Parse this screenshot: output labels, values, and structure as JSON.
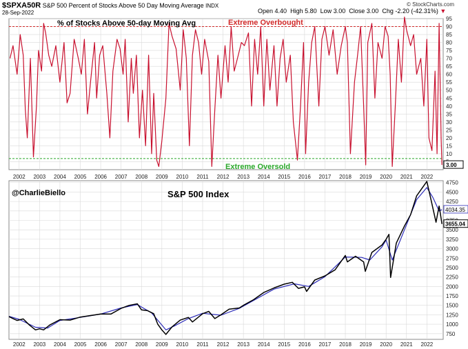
{
  "header": {
    "symbol": "$SPXA50R",
    "description": "S&P 500 Percent of Stocks Above 50 Day Moving Average",
    "exchange": "INDX",
    "date": "28-Sep-2022",
    "open_label": "Open",
    "open_value": "4.40",
    "high_label": "High",
    "high_value": "5.80",
    "low_label": "Low",
    "low_value": "3.00",
    "close_label": "Close",
    "close_value": "3.00",
    "chg_label": "Chg",
    "chg_value": "-2.20 (-42.31%)",
    "watermark": "© StockCharts.com"
  },
  "colors": {
    "breadth_line": "#c8102e",
    "overbought": "#d12a2a",
    "oversold": "#2aa82a",
    "price_line": "#000000",
    "ma_line": "#2b2bb8",
    "grid": "#d9d9d9"
  },
  "chart_data": [
    {
      "type": "line",
      "title": "% of Stocks Above 50-day Moving Avg",
      "xlabel": "",
      "ylabel": "",
      "xlim": [
        2001.5,
        2022.8
      ],
      "ylim": [
        0,
        95
      ],
      "y_ticks": [
        5,
        10,
        15,
        20,
        25,
        30,
        35,
        40,
        45,
        50,
        55,
        60,
        65,
        70,
        75,
        80,
        85,
        90,
        95
      ],
      "grid": true,
      "reference_lines": [
        {
          "label": "Extreme Overbought",
          "value": 90
        },
        {
          "label": "Extreme Oversold",
          "value": 7
        }
      ],
      "last_value_label": "3.00",
      "series": [
        {
          "name": "",
          "x": [
            2001.55,
            2001.7,
            2001.9,
            2002.05,
            2002.2,
            2002.3,
            2002.4,
            2002.55,
            2002.7,
            2002.85,
            2002.95,
            2003.1,
            2003.2,
            2003.3,
            2003.45,
            2003.6,
            2003.8,
            2004.0,
            2004.2,
            2004.35,
            2004.5,
            2004.7,
            2004.9,
            2005.05,
            2005.2,
            2005.35,
            2005.5,
            2005.7,
            2005.8,
            2005.95,
            2006.1,
            2006.3,
            2006.45,
            2006.6,
            2006.8,
            2006.95,
            2007.1,
            2007.2,
            2007.35,
            2007.5,
            2007.6,
            2007.75,
            2007.9,
            2008.05,
            2008.2,
            2008.35,
            2008.5,
            2008.6,
            2008.75,
            2008.85,
            2009.0,
            2009.2,
            2009.35,
            2009.5,
            2009.7,
            2009.9,
            2010.05,
            2010.2,
            2010.35,
            2010.5,
            2010.65,
            2010.8,
            2010.95,
            2011.1,
            2011.3,
            2011.45,
            2011.6,
            2011.75,
            2011.9,
            2012.1,
            2012.25,
            2012.4,
            2012.55,
            2012.75,
            2012.9,
            2013.05,
            2013.25,
            2013.4,
            2013.55,
            2013.7,
            2013.85,
            2014.0,
            2014.15,
            2014.3,
            2014.5,
            2014.65,
            2014.8,
            2014.95,
            2015.1,
            2015.3,
            2015.45,
            2015.65,
            2015.8,
            2015.95,
            2016.05,
            2016.2,
            2016.35,
            2016.5,
            2016.7,
            2016.85,
            2017.0,
            2017.2,
            2017.4,
            2017.6,
            2017.8,
            2018.0,
            2018.1,
            2018.25,
            2018.45,
            2018.6,
            2018.75,
            2018.9,
            2019.0,
            2019.1,
            2019.3,
            2019.45,
            2019.6,
            2019.8,
            2019.95,
            2020.1,
            2020.2,
            2020.3,
            2020.45,
            2020.6,
            2020.75,
            2020.9,
            2021.0,
            2021.2,
            2021.35,
            2021.5,
            2021.7,
            2021.85,
            2022.0,
            2022.1,
            2022.25,
            2022.4,
            2022.5,
            2022.6,
            2022.7,
            2022.74
          ],
          "y": [
            70,
            78,
            60,
            85,
            72,
            38,
            20,
            70,
            8,
            40,
            75,
            62,
            92,
            86,
            72,
            65,
            78,
            55,
            80,
            42,
            48,
            82,
            70,
            60,
            82,
            35,
            55,
            80,
            45,
            72,
            78,
            48,
            20,
            62,
            82,
            76,
            60,
            82,
            30,
            70,
            48,
            72,
            20,
            50,
            15,
            72,
            10,
            48,
            6,
            2,
            18,
            45,
            92,
            84,
            76,
            50,
            88,
            70,
            15,
            72,
            88,
            80,
            60,
            82,
            68,
            2,
            38,
            72,
            45,
            78,
            55,
            90,
            62,
            72,
            80,
            78,
            86,
            40,
            82,
            60,
            90,
            40,
            82,
            50,
            78,
            40,
            70,
            82,
            55,
            72,
            30,
            6,
            40,
            80,
            10,
            55,
            80,
            90,
            40,
            82,
            90,
            72,
            88,
            60,
            78,
            90,
            80,
            10,
            55,
            72,
            90,
            40,
            3,
            80,
            92,
            45,
            80,
            70,
            90,
            84,
            60,
            2,
            40,
            82,
            55,
            96,
            88,
            78,
            85,
            60,
            70,
            40,
            82,
            20,
            12,
            62,
            10,
            92,
            20,
            3
          ]
        }
      ]
    },
    {
      "type": "line",
      "title": "S&P 500 Index",
      "xlabel": "",
      "ylabel": "",
      "annotation": "@CharlieBiello",
      "xlim": [
        2001.5,
        2022.8
      ],
      "ylim": [
        600,
        4800
      ],
      "y_ticks": [
        750,
        1000,
        1250,
        1500,
        1750,
        2000,
        2250,
        2500,
        2750,
        3000,
        3250,
        3500,
        3750,
        4000,
        4250,
        4500,
        4750
      ],
      "x_ticks": [
        "2002",
        "2003",
        "2004",
        "2005",
        "2006",
        "2007",
        "2008",
        "2009",
        "2010",
        "2011",
        "2012",
        "2013",
        "2014",
        "2015",
        "2016",
        "2017",
        "2018",
        "2019",
        "2020",
        "2021",
        "2022"
      ],
      "x_tick_values": [
        2002,
        2003,
        2004,
        2005,
        2006,
        2007,
        2008,
        2009,
        2010,
        2011,
        2012,
        2013,
        2014,
        2015,
        2016,
        2017,
        2018,
        2019,
        2020,
        2021,
        2022
      ],
      "grid": true,
      "price_labels": [
        "4034.35",
        "3655.04"
      ],
      "series": [
        {
          "name": "",
          "x": [
            2001.5,
            2001.7,
            2001.9,
            2002.2,
            2002.5,
            2002.8,
            2003.0,
            2003.2,
            2003.5,
            2004.0,
            2004.5,
            2005.0,
            2005.5,
            2006.0,
            2006.5,
            2007.0,
            2007.4,
            2007.8,
            2008.0,
            2008.3,
            2008.6,
            2008.8,
            2009.0,
            2009.2,
            2009.5,
            2009.9,
            2010.3,
            2010.5,
            2011.0,
            2011.3,
            2011.6,
            2011.9,
            2012.3,
            2012.8,
            2013.0,
            2013.5,
            2014.0,
            2014.5,
            2015.0,
            2015.4,
            2015.7,
            2016.0,
            2016.1,
            2016.5,
            2017.0,
            2017.5,
            2018.0,
            2018.1,
            2018.5,
            2018.9,
            2018.98,
            2019.3,
            2019.8,
            2020.0,
            2020.14,
            2020.22,
            2020.5,
            2020.9,
            2021.2,
            2021.5,
            2022.0,
            2022.2,
            2022.45,
            2022.6,
            2022.7,
            2022.74
          ],
          "y": [
            1200,
            1150,
            1100,
            1140,
            980,
            850,
            880,
            850,
            980,
            1120,
            1110,
            1190,
            1230,
            1270,
            1270,
            1420,
            1500,
            1540,
            1380,
            1360,
            1280,
            1000,
            850,
            730,
            930,
            1110,
            1180,
            1060,
            1280,
            1340,
            1150,
            1250,
            1400,
            1430,
            1500,
            1650,
            1840,
            1960,
            2060,
            2110,
            1950,
            1990,
            1870,
            2170,
            2280,
            2440,
            2820,
            2650,
            2800,
            2650,
            2400,
            2900,
            3100,
            3250,
            3380,
            2240,
            3150,
            3600,
            3900,
            4400,
            4780,
            4300,
            3700,
            4130,
            3800,
            3655
          ]
        },
        {
          "name": "",
          "x": [
            2001.5,
            2002.0,
            2002.8,
            2003.4,
            2004.0,
            2005.0,
            2006.0,
            2007.0,
            2007.8,
            2008.5,
            2009.2,
            2009.6,
            2010.3,
            2011.0,
            2011.9,
            2012.8,
            2013.5,
            2014.5,
            2015.5,
            2016.2,
            2017.0,
            2018.0,
            2018.8,
            2019.2,
            2019.8,
            2020.0,
            2020.3,
            2020.9,
            2021.5,
            2022.0,
            2022.3,
            2022.6,
            2022.74
          ],
          "y": [
            1210,
            1130,
            920,
            900,
            1100,
            1180,
            1270,
            1430,
            1520,
            1300,
            850,
            950,
            1150,
            1290,
            1240,
            1420,
            1630,
            1930,
            2070,
            2000,
            2260,
            2780,
            2770,
            2700,
            3050,
            3230,
            2700,
            3500,
            4300,
            4620,
            4350,
            4000,
            4034
          ]
        }
      ]
    }
  ]
}
